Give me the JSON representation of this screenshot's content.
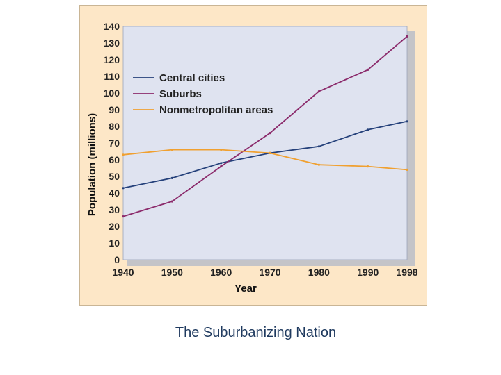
{
  "caption": "The Suburbanizing Nation",
  "chart_data": {
    "type": "line",
    "title": "",
    "xlabel": "Year",
    "ylabel": "Population (millions)",
    "xlim": [
      1940,
      1998
    ],
    "ylim": [
      0,
      140
    ],
    "x_ticks": [
      1940,
      1950,
      1960,
      1970,
      1980,
      1990,
      1998
    ],
    "y_ticks": [
      0,
      10,
      20,
      30,
      40,
      50,
      60,
      70,
      80,
      90,
      100,
      110,
      120,
      130,
      140
    ],
    "grid": false,
    "legend_position": "upper-left",
    "series": [
      {
        "name": "Central cities",
        "color": "#24407a",
        "x": [
          1940,
          1950,
          1960,
          1970,
          1980,
          1990,
          1998
        ],
        "y": [
          43,
          49,
          58,
          64,
          68,
          78,
          83
        ]
      },
      {
        "name": "Suburbs",
        "color": "#8b2a6b",
        "x": [
          1940,
          1950,
          1960,
          1970,
          1980,
          1990,
          1998
        ],
        "y": [
          26,
          35,
          56,
          76,
          101,
          114,
          134
        ]
      },
      {
        "name": "Nonmetropolitan areas",
        "color": "#f0a030",
        "x": [
          1940,
          1950,
          1960,
          1970,
          1980,
          1990,
          1998
        ],
        "y": [
          63,
          66,
          66,
          64,
          57,
          56,
          54
        ]
      }
    ],
    "colors": {
      "plot_background": "#dfe3f0",
      "plot_shadow": "#c4c4c8",
      "figure_background": "#fde7c7"
    }
  }
}
